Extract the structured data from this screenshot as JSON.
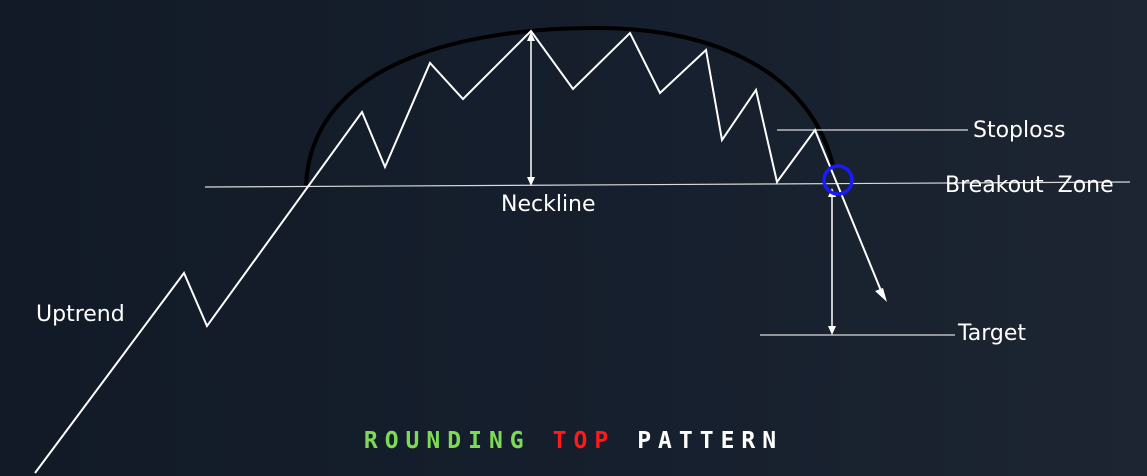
{
  "labels": {
    "uptrend": "Uptrend",
    "neckline": "Neckline",
    "stoploss": "Stoploss",
    "breakout_zone": "Breakout  Zone",
    "target": "Target"
  },
  "title": {
    "word1": "ROUNDING",
    "word2": "TOP",
    "word3": "PATTERN"
  },
  "colors": {
    "background": "#161f2d",
    "price_line": "#ffffff",
    "arc": "#000000",
    "breakout_circle": "#1a1aff",
    "title_word1": "#7ed957",
    "title_word2": "#ff1a1a",
    "title_word3": "#ffffff"
  }
}
